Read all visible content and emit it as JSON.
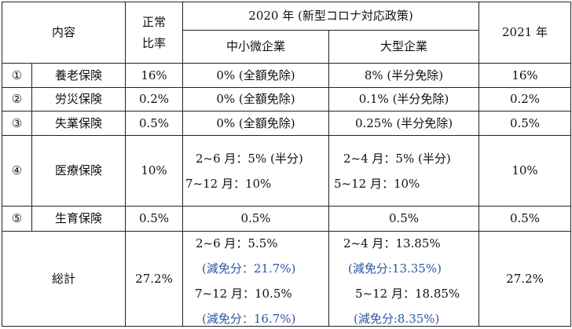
{
  "header": {
    "content": "内容",
    "normal_rate_line1": "正常",
    "normal_rate_line2": "比率",
    "covid_policy": "2020 年 (新型コロナ対応政策)",
    "sme": "中小微企業",
    "large": "大型企業",
    "y2021": "2021 年"
  },
  "rows": [
    {
      "num": "①",
      "name": "養老保険",
      "normal": "16%",
      "sme": "0% (全額免除)",
      "large": "8% (半分免除)",
      "y2021": "16%"
    },
    {
      "num": "②",
      "name": "労災保険",
      "normal": "0.2%",
      "sme": "0% (全額免除)",
      "large": "0.1% (半分免除)",
      "y2021": "0.2%"
    },
    {
      "num": "③",
      "name": "失業保険",
      "normal": "0.5%",
      "sme": "0% (全額免除)",
      "large": "0.25% (半分免除)",
      "y2021": "0.5%"
    },
    {
      "num": "④",
      "name": "医療保険",
      "normal": "10%",
      "sme_l1": "2~6 月：5% (半分)",
      "sme_l2": "7~12 月：10%",
      "large_l1": "2~4 月：5% (半分)",
      "large_l2": "5~12 月：10%",
      "y2021": "10%"
    },
    {
      "num": "⑤",
      "name": "生育保険",
      "normal": "0.5%",
      "sme": "0.5%",
      "large": "0.5%",
      "y2021": "0.5%"
    }
  ],
  "total": {
    "label": "総計",
    "normal": "27.2%",
    "sme_l1": "2~6 月：5.5%",
    "sme_l2": "(減免分：21.7%)",
    "sme_l3": "7~12 月：10.5%",
    "sme_l4": "(減免分：16.7%)",
    "large_l1": "2~4 月：13.85%",
    "large_l2": "(減免分:13.35%)",
    "large_l3": "5~12 月：18.85%",
    "large_l4": "(減免分:8.35%)",
    "y2021": "27.2%"
  },
  "colors": {
    "border": "#222222",
    "highlight_text": "#2e57a3"
  }
}
